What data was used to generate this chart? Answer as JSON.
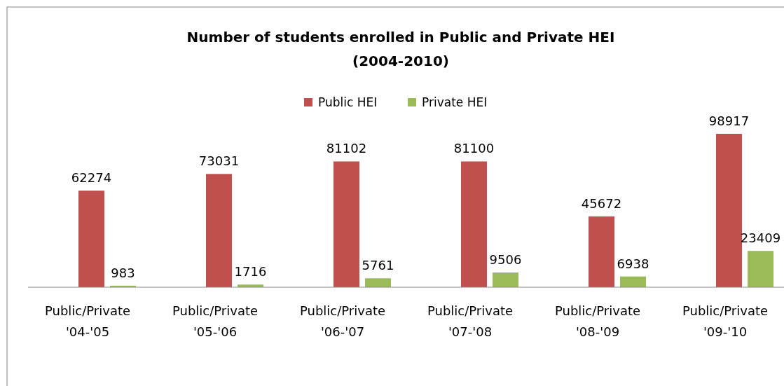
{
  "chart_data": {
    "type": "bar",
    "title": "Number of students enrolled in Public and Private HEI\n(2004-2010)",
    "categories": [
      "Public/Private\n'04-'05",
      "Public/Private\n'05-'06",
      "Public/Private\n'06-'07",
      "Public/Private\n'07-'08",
      "Public/Private\n'08-'09",
      "Public/Private\n'09-'10"
    ],
    "series": [
      {
        "name": "Public HEI",
        "color": "#c0504d",
        "values": [
          62274,
          73031,
          81102,
          81100,
          45672,
          98917
        ]
      },
      {
        "name": "Private HEI",
        "color": "#9bbb59",
        "values": [
          983,
          1716,
          5761,
          9506,
          6938,
          23409
        ]
      }
    ],
    "data_labels": true,
    "legend": "top"
  }
}
